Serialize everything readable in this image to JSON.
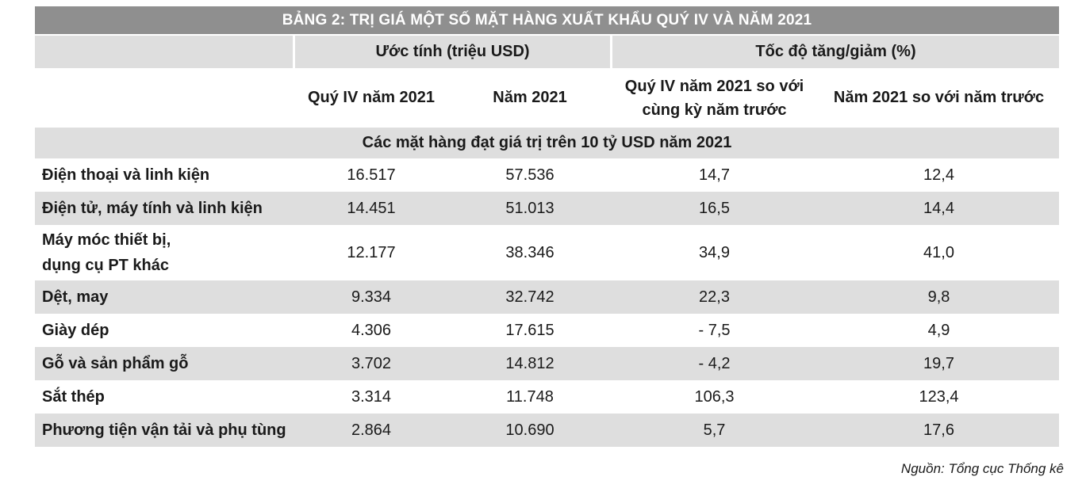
{
  "title": "BẢNG 2: TRỊ GIÁ MỘT SỐ MẶT HÀNG XUẤT KHẨU QUÝ IV VÀ NĂM 2021",
  "headers": {
    "group1": "Ước tính (triệu USD)",
    "group2": "Tốc độ tăng/giảm (%)",
    "col1": "Quý IV năm 2021",
    "col2": "Năm 2021",
    "col3_line1": "Quý IV năm 2021 so với",
    "col3_line2": "cùng kỳ năm trước",
    "col4": "Năm 2021 so với năm trước"
  },
  "section": "Các mặt hàng đạt giá trị trên 10 tỷ USD năm 2021",
  "rows": [
    {
      "name": "Điện thoại và linh kiện",
      "q4": "16.517",
      "year": "57.536",
      "q4_growth": "14,7",
      "year_growth": "12,4"
    },
    {
      "name": "Điện tử, máy tính và linh kiện",
      "q4": "14.451",
      "year": "51.013",
      "q4_growth": "16,5",
      "year_growth": "14,4"
    },
    {
      "name_line1": "Máy móc thiết bị,",
      "name_line2": "dụng cụ PT khác",
      "q4": "12.177",
      "year": "38.346",
      "q4_growth": "34,9",
      "year_growth": "41,0"
    },
    {
      "name": "Dệt, may",
      "q4": "9.334",
      "year": "32.742",
      "q4_growth": "22,3",
      "year_growth": "9,8"
    },
    {
      "name": "Giày dép",
      "q4": "4.306",
      "year": "17.615",
      "q4_growth": "- 7,5",
      "year_growth": "4,9"
    },
    {
      "name": "Gỗ và sản phẩm gỗ",
      "q4": "3.702",
      "year": "14.812",
      "q4_growth": "- 4,2",
      "year_growth": "19,7"
    },
    {
      "name": "Sắt thép",
      "q4": "3.314",
      "year": "11.748",
      "q4_growth": "106,3",
      "year_growth": "123,4"
    },
    {
      "name": "Phương tiện vận tải và phụ tùng",
      "q4": "2.864",
      "year": "10.690",
      "q4_growth": "5,7",
      "year_growth": "17,6"
    }
  ],
  "source": "Nguồn: Tổng cục Thống kê"
}
